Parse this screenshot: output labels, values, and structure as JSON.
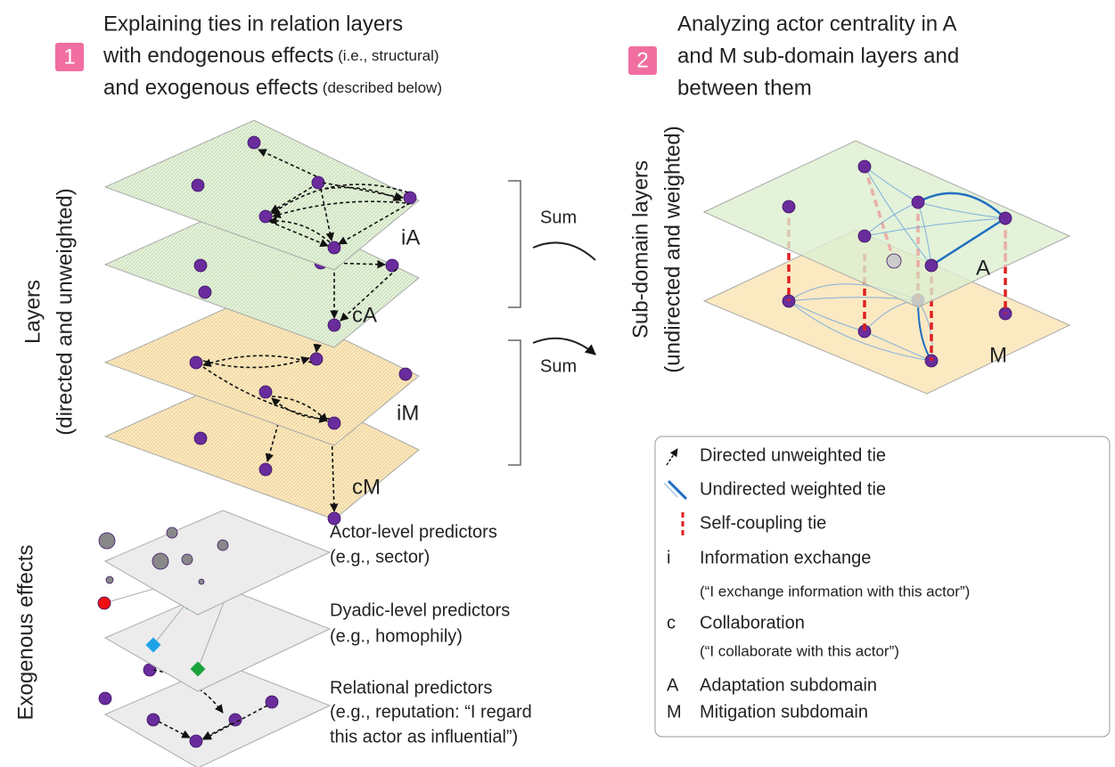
{
  "panel1": {
    "badge": "1",
    "title": [
      {
        "main": "Explaining ties in relation layers"
      },
      {
        "main": "with endogenous effects",
        "small": " (i.e., structural)"
      },
      {
        "main": "and exogenous effects",
        "small": " (described below)"
      }
    ],
    "axis_label": [
      "Layers",
      "(directed and unweighted)"
    ],
    "layers": [
      "iA",
      "cA",
      "iM",
      "cM"
    ],
    "sum": [
      "Sum",
      "Sum"
    ],
    "exogenous_label": "Exogenous effects",
    "predictors": [
      {
        "name": "Actor-level predictors",
        "detail": [
          "(e.g., sector)"
        ]
      },
      {
        "name": "Dyadic-level predictors",
        "detail": [
          "(e.g., homophily)"
        ]
      },
      {
        "name": "Relational predictors",
        "detail": [
          "(e.g., reputation: “I regard",
          "this actor as influential”)"
        ]
      }
    ]
  },
  "panel2": {
    "badge": "2",
    "title": [
      "Analyzing actor centrality in A",
      "and M sub-domain layers and",
      "between them"
    ],
    "axis_label": [
      "Sub-domain layers",
      "(undirected and weighted)"
    ],
    "layers": [
      "A",
      "M"
    ]
  },
  "legend": {
    "ties": [
      "Directed unweighted tie",
      "Undirected weighted tie",
      "Self-coupling tie"
    ],
    "terms": [
      {
        "key": "i",
        "text": "Information exchange",
        "note": "(“I exchange information with this actor”)"
      },
      {
        "key": "c",
        "text": "Collaboration",
        "note": "(“I collaborate with this actor”)"
      },
      {
        "key": "A",
        "text": "Adaptation subdomain"
      },
      {
        "key": "M",
        "text": "Mitigation subdomain"
      }
    ]
  }
}
